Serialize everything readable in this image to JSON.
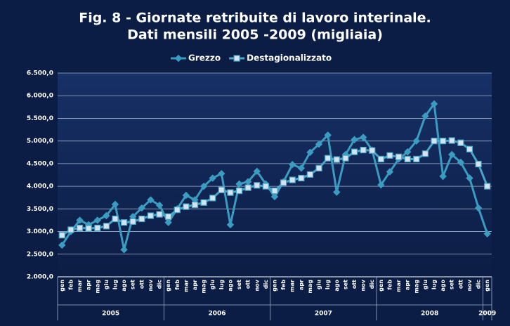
{
  "chart_data": {
    "type": "line",
    "title": "Fig. 8 - Giornate retribuite di lavoro interinale.",
    "subtitle": "Dati mensili 2005 -2009 (migliaia)",
    "categories": [
      "gen",
      "feb",
      "mar",
      "apr",
      "mag",
      "giu",
      "lug",
      "ago",
      "set",
      "ott",
      "nov",
      "dic",
      "gen",
      "feb",
      "mar",
      "apr",
      "mag",
      "giu",
      "lug",
      "ago",
      "set",
      "ott",
      "nov",
      "dic",
      "gen",
      "feb",
      "mar",
      "apr",
      "mag",
      "giu",
      "lug",
      "ago",
      "set",
      "ott",
      "nov",
      "dic",
      "gen",
      "feb",
      "mar",
      "apr",
      "mag",
      "giu",
      "lug",
      "ago",
      "set",
      "ott",
      "nov",
      "dic",
      "gen"
    ],
    "category_groups": [
      {
        "label": "2005",
        "count": 12
      },
      {
        "label": "2006",
        "count": 12
      },
      {
        "label": "2007",
        "count": 12
      },
      {
        "label": "2008",
        "count": 12
      },
      {
        "label": "2009",
        "count": 1
      }
    ],
    "series": [
      {
        "name": "Grezzo",
        "color": "#3a9cc0",
        "marker": "diamond",
        "values": [
          2700,
          3000,
          3250,
          3150,
          3250,
          3350,
          3600,
          2600,
          3330,
          3520,
          3700,
          3580,
          3200,
          3500,
          3800,
          3700,
          4000,
          4180,
          4280,
          3150,
          4050,
          4100,
          4330,
          4050,
          3770,
          4100,
          4480,
          4400,
          4750,
          4930,
          5130,
          3870,
          4700,
          5030,
          5080,
          4800,
          4030,
          4320,
          4600,
          4760,
          5000,
          5550,
          5820,
          4220,
          4700,
          4530,
          4180,
          3520,
          2950
        ]
      },
      {
        "name": "Destagionalizzato",
        "color": "#4aa6c8",
        "marker": "square",
        "values": [
          2920,
          3040,
          3080,
          3070,
          3080,
          3120,
          3280,
          3200,
          3220,
          3280,
          3350,
          3380,
          3330,
          3480,
          3550,
          3590,
          3640,
          3740,
          3920,
          3860,
          3900,
          3970,
          4020,
          4000,
          3900,
          4080,
          4140,
          4180,
          4260,
          4400,
          4620,
          4590,
          4620,
          4760,
          4800,
          4790,
          4600,
          4680,
          4650,
          4600,
          4600,
          4720,
          5000,
          5000,
          5010,
          4960,
          4820,
          4490,
          4000
        ]
      }
    ],
    "ylim": [
      2000,
      6500
    ],
    "yticks": [
      {
        "value": 2000,
        "label": "2.000,0"
      },
      {
        "value": 2500,
        "label": "2.500,0"
      },
      {
        "value": 3000,
        "label": "3.000,0"
      },
      {
        "value": 3500,
        "label": "3.500,0"
      },
      {
        "value": 4000,
        "label": "4.000,0"
      },
      {
        "value": 4500,
        "label": "4.500,0"
      },
      {
        "value": 5000,
        "label": "5.000,0"
      },
      {
        "value": 5500,
        "label": "5.500,0"
      },
      {
        "value": 6000,
        "label": "6.000,0"
      },
      {
        "value": 6500,
        "label": "6.500,0"
      }
    ],
    "grid": true,
    "legend": "top"
  }
}
